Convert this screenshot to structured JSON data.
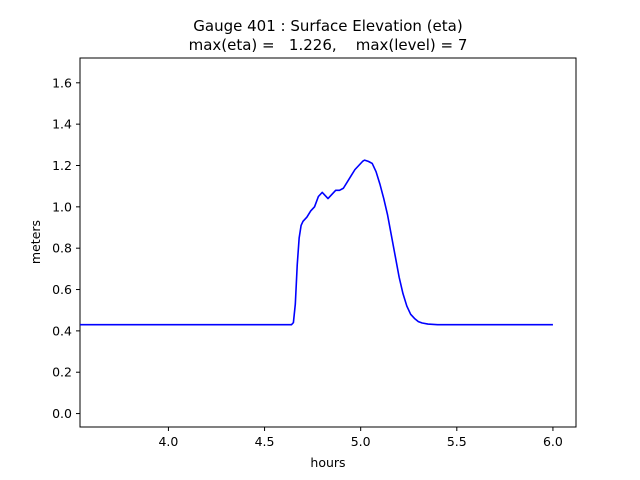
{
  "chart_data": {
    "type": "line",
    "title": "Gauge 401 : Surface Elevation (eta)",
    "subtitle": "max(eta) =   1.226,    max(level) = 7",
    "xlabel": "hours",
    "ylabel": "meters",
    "xlim": [
      3.54,
      6.12
    ],
    "ylim": [
      -0.065,
      1.72
    ],
    "xticks": [
      "4.0",
      "4.5",
      "5.0",
      "5.5",
      "6.0"
    ],
    "yticks": [
      "0.0",
      "0.2",
      "0.4",
      "0.6",
      "0.8",
      "1.0",
      "1.2",
      "1.4",
      "1.6"
    ],
    "grid": false,
    "series": [
      {
        "color": "#0000ff",
        "x": [
          3.54,
          4.0,
          4.5,
          4.64,
          4.65,
          4.66,
          4.67,
          4.68,
          4.69,
          4.7,
          4.72,
          4.74,
          4.76,
          4.78,
          4.8,
          4.81,
          4.83,
          4.85,
          4.87,
          4.89,
          4.91,
          4.93,
          4.95,
          4.97,
          4.99,
          5.01,
          5.02,
          5.04,
          5.06,
          5.08,
          5.1,
          5.12,
          5.14,
          5.16,
          5.18,
          5.2,
          5.22,
          5.24,
          5.26,
          5.28,
          5.3,
          5.32,
          5.35,
          5.4,
          5.5,
          6.0
        ],
        "y": [
          0.43,
          0.43,
          0.43,
          0.43,
          0.44,
          0.53,
          0.72,
          0.85,
          0.91,
          0.93,
          0.95,
          0.98,
          1.0,
          1.05,
          1.07,
          1.06,
          1.04,
          1.06,
          1.08,
          1.08,
          1.09,
          1.12,
          1.15,
          1.18,
          1.2,
          1.22,
          1.226,
          1.22,
          1.21,
          1.17,
          1.11,
          1.04,
          0.96,
          0.86,
          0.76,
          0.66,
          0.58,
          0.52,
          0.48,
          0.46,
          0.445,
          0.438,
          0.433,
          0.43,
          0.43,
          0.43
        ]
      }
    ]
  }
}
